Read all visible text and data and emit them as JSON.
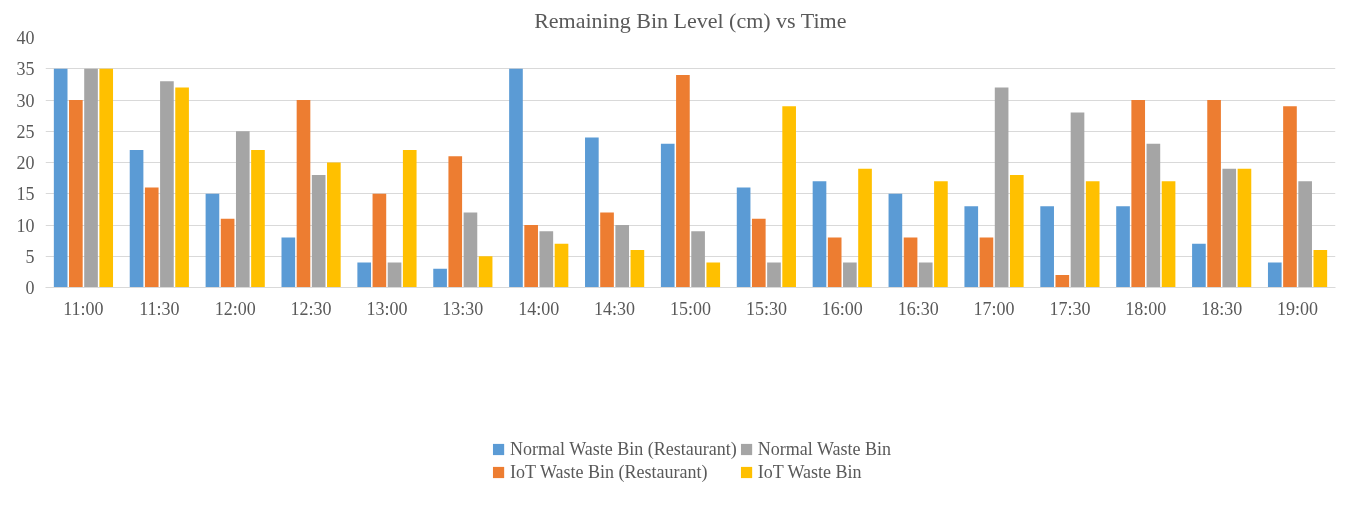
{
  "chart_data": {
    "type": "bar",
    "title": "Remaining Bin Level (cm) vs Time",
    "categories": [
      "11:00",
      "11:30",
      "12:00",
      "12:30",
      "13:00",
      "13:30",
      "14:00",
      "14:30",
      "15:00",
      "15:30",
      "16:00",
      "16:30",
      "17:00",
      "17:30",
      "18:00",
      "18:30",
      "19:00"
    ],
    "series": [
      {
        "name": "Normal Waste Bin (Restaurant)",
        "color": "#5b9bd5",
        "values": [
          35,
          22,
          15,
          8,
          4,
          3,
          35,
          24,
          23,
          16,
          17,
          15,
          13,
          13,
          13,
          7,
          4
        ]
      },
      {
        "name": "IoT Waste Bin (Restaurant)",
        "color": "#ed7d31",
        "values": [
          30,
          16,
          11,
          30,
          15,
          21,
          10,
          12,
          34,
          11,
          8,
          8,
          8,
          2,
          30,
          30,
          29
        ]
      },
      {
        "name": "Normal Waste Bin",
        "color": "#a5a5a5",
        "values": [
          35,
          33,
          25,
          18,
          4,
          12,
          9,
          10,
          9,
          4,
          4,
          4,
          32,
          28,
          23,
          19,
          17
        ]
      },
      {
        "name": "IoT Waste Bin",
        "color": "#ffc000",
        "values": [
          35,
          32,
          22,
          20,
          22,
          5,
          7,
          6,
          4,
          29,
          19,
          17,
          18,
          17,
          17,
          19,
          6
        ]
      }
    ],
    "ylim": [
      0,
      40
    ],
    "yticks": [
      0,
      5,
      10,
      15,
      20,
      25,
      30,
      35,
      40
    ],
    "grid": "y",
    "legend": "bottom"
  }
}
